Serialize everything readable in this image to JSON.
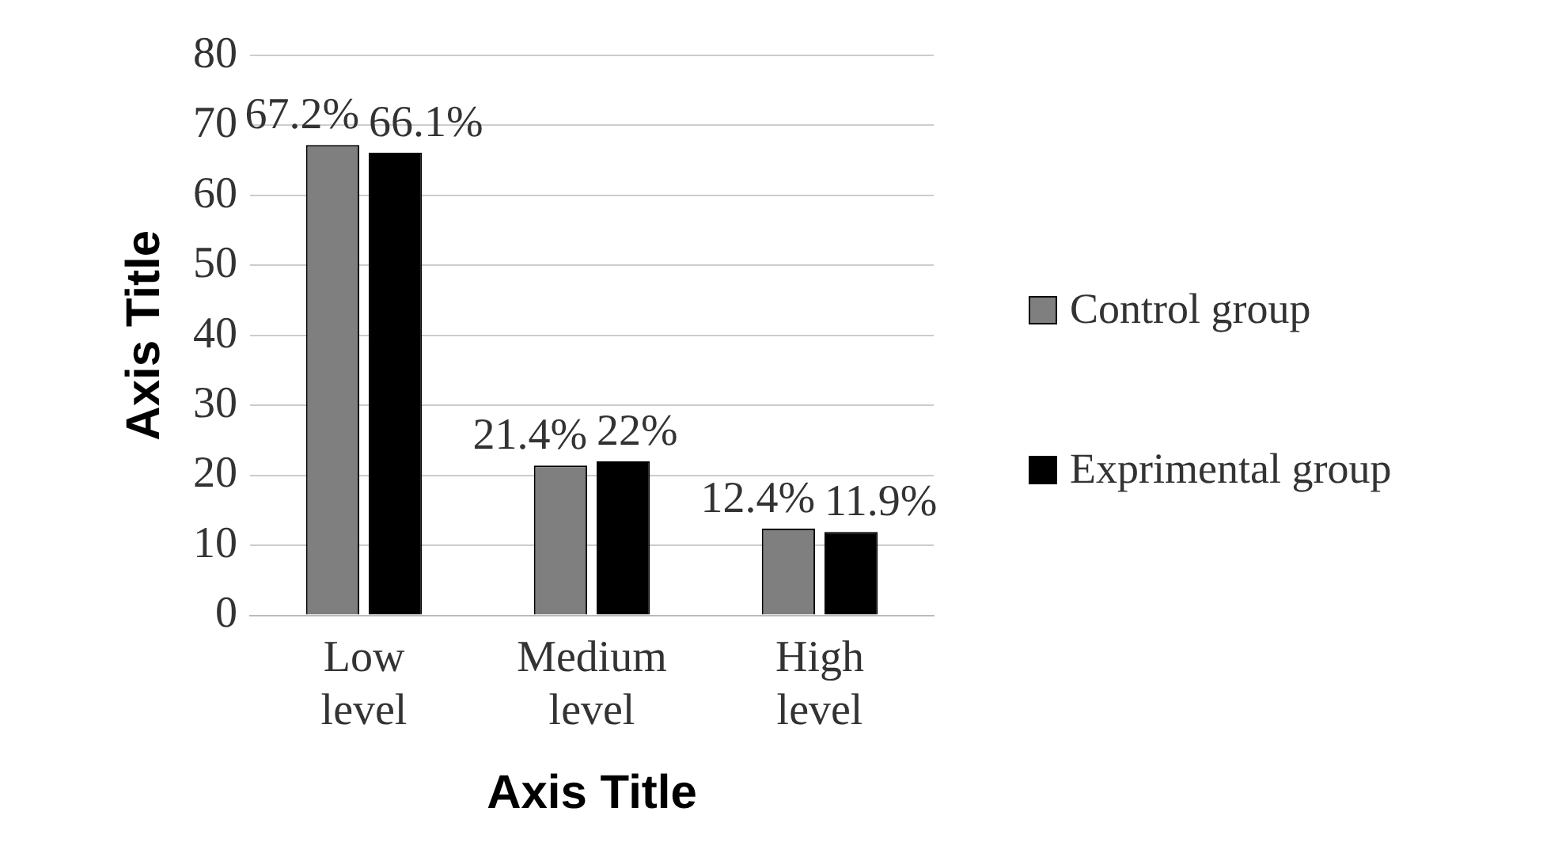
{
  "chart_data": {
    "type": "bar",
    "xlabel": "Axis Title",
    "ylabel": "Axis Title",
    "categories": [
      "Low level",
      "Medium level",
      "High level"
    ],
    "series": [
      {
        "name": "Control group",
        "color": "#7f7f7f",
        "values": [
          67.2,
          21.4,
          12.4
        ],
        "value_labels": [
          "67.2%",
          "21.4%",
          "12.4%"
        ]
      },
      {
        "name": "Exprimental group",
        "color": "#000000",
        "values": [
          66.1,
          22,
          11.9
        ],
        "value_labels": [
          "66.1%",
          "22%",
          "11.9%"
        ]
      }
    ],
    "ylim": [
      0,
      80
    ],
    "yticks": [
      0,
      10,
      20,
      30,
      40,
      50,
      60,
      70,
      80
    ],
    "grid": "y",
    "legend": "right"
  }
}
